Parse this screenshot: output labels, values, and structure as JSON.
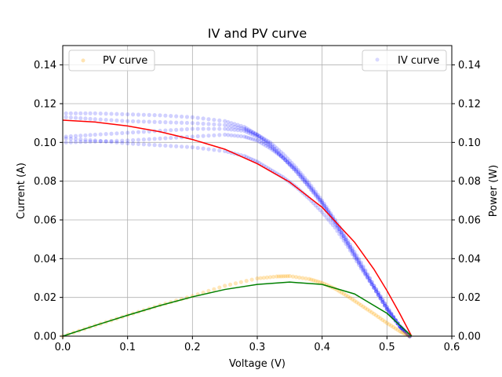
{
  "chart_data": {
    "type": "scatter",
    "title": "IV and PV curve",
    "xlabel": "Voltage (V)",
    "ylabel": "Current (A)",
    "y2label": "Power (W)",
    "xlim": [
      0.0,
      0.6
    ],
    "ylim": [
      0.0,
      0.15
    ],
    "y2lim": [
      0.0,
      0.15
    ],
    "xticks": [
      "0.0",
      "0.1",
      "0.2",
      "0.3",
      "0.4",
      "0.5",
      "0.6"
    ],
    "yticks": [
      "0.00",
      "0.02",
      "0.04",
      "0.06",
      "0.08",
      "0.10",
      "0.12",
      "0.14"
    ],
    "grid": true,
    "legend_left": {
      "placement": "upper-left",
      "label": "PV curve",
      "color": "#ffa500"
    },
    "legend_right": {
      "placement": "upper-right",
      "label": "IV curve",
      "color": "#0000ff"
    },
    "series": [
      {
        "name": "IV curve",
        "kind": "scatter",
        "axis": "left",
        "color": "#0000ff",
        "sweeps": [
          {
            "x": [
              0.005,
              0.05,
              0.1,
              0.15,
              0.2,
              0.25,
              0.28,
              0.3,
              0.32,
              0.34,
              0.36,
              0.38,
              0.4,
              0.42,
              0.44,
              0.46,
              0.48,
              0.5,
              0.52,
              0.535
            ],
            "y": [
              0.115,
              0.115,
              0.1145,
              0.114,
              0.113,
              0.111,
              0.108,
              0.104,
              0.099,
              0.092,
              0.085,
              0.077,
              0.068,
              0.058,
              0.047,
              0.036,
              0.025,
              0.014,
              0.005,
              0.0
            ]
          },
          {
            "x": [
              0.005,
              0.05,
              0.1,
              0.15,
              0.2,
              0.25,
              0.28,
              0.3,
              0.32,
              0.34,
              0.36,
              0.38,
              0.4,
              0.42,
              0.44,
              0.46,
              0.48,
              0.5,
              0.52,
              0.535
            ],
            "y": [
              0.103,
              0.104,
              0.105,
              0.106,
              0.107,
              0.107,
              0.106,
              0.103,
              0.098,
              0.092,
              0.085,
              0.077,
              0.069,
              0.059,
              0.048,
              0.037,
              0.026,
              0.015,
              0.005,
              0.0
            ]
          },
          {
            "x": [
              0.005,
              0.05,
              0.1,
              0.15,
              0.2,
              0.25,
              0.28,
              0.3,
              0.32,
              0.34,
              0.36,
              0.38,
              0.4,
              0.42,
              0.44,
              0.46,
              0.48,
              0.5,
              0.52,
              0.535
            ],
            "y": [
              0.1,
              0.1005,
              0.101,
              0.102,
              0.103,
              0.104,
              0.103,
              0.101,
              0.097,
              0.092,
              0.086,
              0.078,
              0.069,
              0.059,
              0.048,
              0.036,
              0.025,
              0.014,
              0.005,
              0.0
            ]
          },
          {
            "x": [
              0.005,
              0.05,
              0.1,
              0.15,
              0.2,
              0.25,
              0.28,
              0.3,
              0.32,
              0.34,
              0.36,
              0.38,
              0.4,
              0.42,
              0.44,
              0.46,
              0.48,
              0.5,
              0.52,
              0.535
            ],
            "y": [
              0.102,
              0.101,
              0.0995,
              0.0985,
              0.0975,
              0.0955,
              0.093,
              0.09,
              0.086,
              0.082,
              0.077,
              0.071,
              0.064,
              0.056,
              0.046,
              0.035,
              0.025,
              0.014,
              0.005,
              0.0
            ]
          },
          {
            "x": [
              0.005,
              0.05,
              0.1,
              0.15,
              0.2,
              0.25,
              0.28,
              0.3,
              0.32,
              0.34,
              0.36,
              0.38,
              0.4,
              0.42,
              0.44,
              0.46,
              0.48,
              0.5,
              0.52,
              0.535
            ],
            "y": [
              0.113,
              0.112,
              0.111,
              0.1105,
              0.11,
              0.109,
              0.107,
              0.104,
              0.1,
              0.094,
              0.087,
              0.079,
              0.07,
              0.06,
              0.049,
              0.038,
              0.026,
              0.015,
              0.005,
              0.0
            ]
          }
        ]
      },
      {
        "name": "PV curve",
        "kind": "scatter",
        "axis": "right",
        "color": "#ffa500",
        "x": [
          0.0,
          0.05,
          0.1,
          0.15,
          0.2,
          0.25,
          0.3,
          0.33,
          0.35,
          0.38,
          0.4,
          0.42,
          0.44,
          0.46,
          0.48,
          0.5,
          0.52,
          0.535
        ],
        "y": [
          0.0,
          0.0055,
          0.0108,
          0.016,
          0.0207,
          0.026,
          0.0298,
          0.0308,
          0.031,
          0.0295,
          0.0275,
          0.0245,
          0.0205,
          0.016,
          0.0115,
          0.0068,
          0.0025,
          0.0
        ]
      },
      {
        "kind": "line",
        "axis": "left",
        "color": "#ff0000",
        "x": [
          0.0,
          0.05,
          0.1,
          0.15,
          0.2,
          0.25,
          0.3,
          0.35,
          0.4,
          0.45,
          0.48,
          0.5,
          0.52,
          0.538
        ],
        "y": [
          0.1115,
          0.1105,
          0.1085,
          0.1055,
          0.1015,
          0.0965,
          0.089,
          0.0795,
          0.0665,
          0.0485,
          0.0345,
          0.0235,
          0.0115,
          0.0
        ]
      },
      {
        "kind": "line",
        "axis": "right",
        "color": "#008000",
        "x": [
          0.0,
          0.05,
          0.1,
          0.15,
          0.2,
          0.25,
          0.3,
          0.35,
          0.4,
          0.45,
          0.5,
          0.538
        ],
        "y": [
          0.0,
          0.0055,
          0.0108,
          0.0158,
          0.0203,
          0.0241,
          0.0267,
          0.0279,
          0.0267,
          0.0218,
          0.0118,
          0.0
        ]
      }
    ]
  }
}
